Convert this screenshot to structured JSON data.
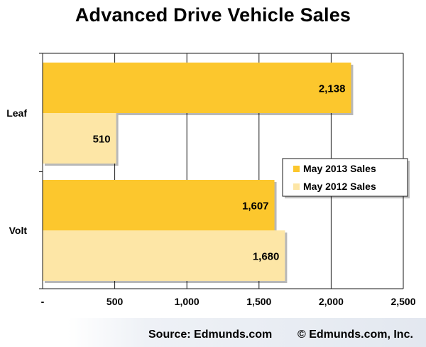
{
  "chart_data": {
    "type": "bar",
    "orientation": "horizontal",
    "title": "Advanced Drive Vehicle Sales",
    "xlabel": "",
    "ylabel": "",
    "categories": [
      "Leaf",
      "Volt"
    ],
    "series": [
      {
        "name": "May 2013 Sales",
        "values": [
          2138,
          1607
        ],
        "color": "#fcc72d",
        "labels": [
          "2,138",
          "1,607"
        ]
      },
      {
        "name": "May 2012 Sales",
        "values": [
          510,
          1680
        ],
        "color": "#fde6a6",
        "labels": [
          "510",
          "1,680"
        ]
      }
    ],
    "xlim": [
      0,
      2500
    ],
    "xticks": [
      0,
      500,
      1000,
      1500,
      2000,
      2500
    ],
    "xtick_labels": [
      "-",
      "500",
      "1,000",
      "1,500",
      "2,000",
      "2,500"
    ],
    "grid": "vertical",
    "legend_position": "right"
  },
  "footer": {
    "source": "Source: Edmunds.com",
    "copyright": "© Edmunds.com, Inc."
  }
}
